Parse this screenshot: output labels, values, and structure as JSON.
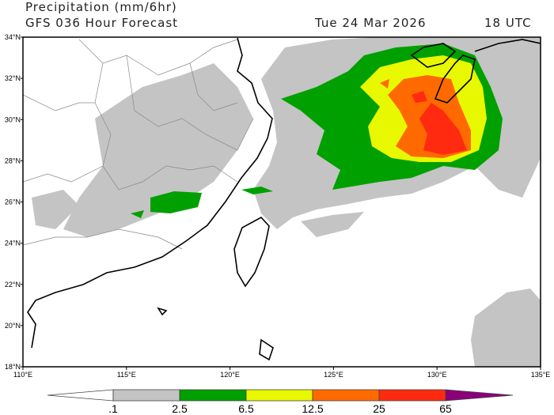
{
  "header": {
    "title": "Precipitation (mm/6hr)",
    "subtitle": "GFS 036 Hour Forecast",
    "valid_date": "Tue 24 Mar 2026",
    "valid_time": "18 UTC"
  },
  "map": {
    "lon_range": [
      110,
      135
    ],
    "lat_range": [
      18,
      34
    ],
    "lon_labels": [
      "110°E",
      "115°E",
      "120°E",
      "125°E",
      "130°E",
      "135°E"
    ],
    "lat_labels": [
      "34°N",
      "32°N",
      "30°N",
      "28°N",
      "26°N",
      "24°N",
      "22°N",
      "20°N",
      "18°N"
    ]
  },
  "colorbar": {
    "labels": [
      ".1",
      "2.5",
      "6.5",
      "12.5",
      "25",
      "65"
    ],
    "colors": [
      "#ffffff",
      "#c4c4c4",
      "#00a000",
      "#e8f800",
      "#ff6a00",
      "#ff2a10",
      "#8a0078"
    ]
  }
}
